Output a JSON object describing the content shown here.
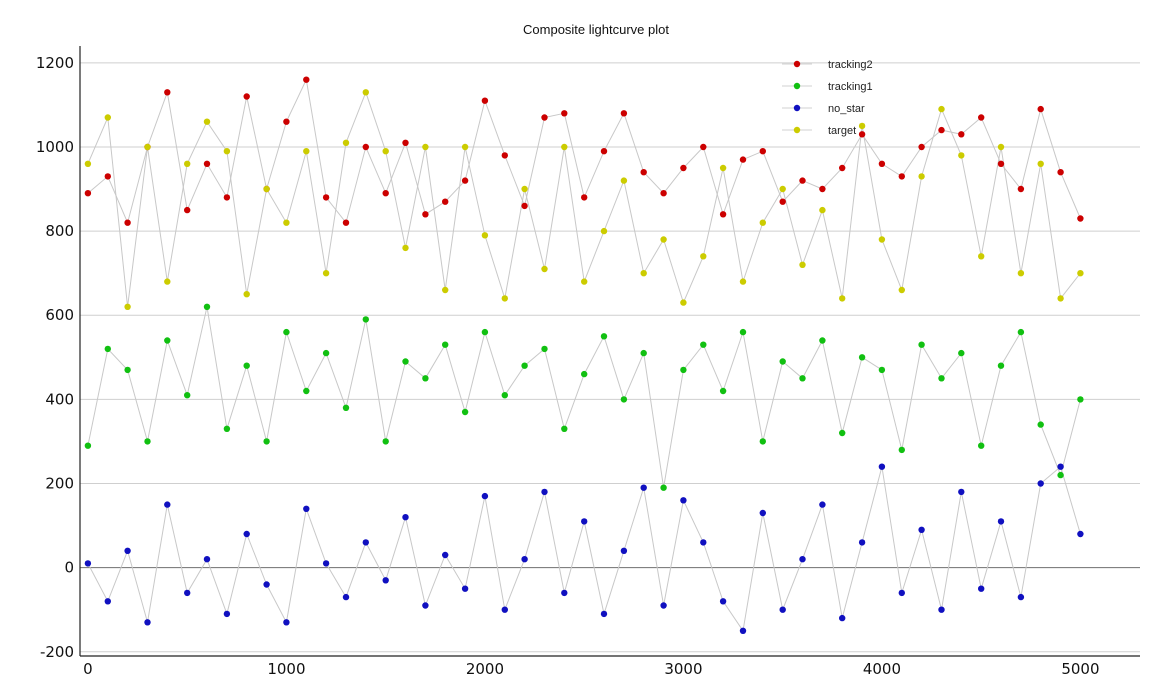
{
  "chart_data": {
    "type": "scatter",
    "title": "Composite lightcurve plot",
    "xlabel": "",
    "ylabel": "",
    "xlim": [
      -40,
      5300
    ],
    "ylim": [
      -210,
      1240
    ],
    "x_ticks": [
      0,
      1000,
      2000,
      3000,
      4000,
      5000
    ],
    "y_ticks": [
      -200,
      0,
      200,
      400,
      600,
      800,
      1000,
      1200
    ],
    "grid": true,
    "legend_position": "top-right",
    "draw_order": [
      "no_star",
      "tracking1",
      "tracking2",
      "target"
    ],
    "series": [
      {
        "name": "tracking2",
        "color": "#cc0000",
        "x": [
          0,
          100,
          200,
          300,
          400,
          500,
          600,
          700,
          800,
          900,
          1000,
          1100,
          1200,
          1300,
          1400,
          1500,
          1600,
          1700,
          1800,
          1900,
          2000,
          2100,
          2200,
          2300,
          2400,
          2500,
          2600,
          2700,
          2800,
          2900,
          3000,
          3100,
          3200,
          3300,
          3400,
          3500,
          3600,
          3700,
          3800,
          3900,
          4000,
          4100,
          4200,
          4300,
          4400,
          4500,
          4600,
          4700,
          4800,
          4900,
          5000
        ],
        "y": [
          890,
          930,
          820,
          1000,
          1130,
          850,
          960,
          880,
          1120,
          900,
          1060,
          1160,
          880,
          820,
          1000,
          890,
          1010,
          840,
          870,
          920,
          1110,
          980,
          860,
          1070,
          1080,
          880,
          990,
          1080,
          940,
          890,
          950,
          1000,
          840,
          970,
          990,
          870,
          920,
          900,
          950,
          1030,
          960,
          930,
          1000,
          1040,
          1030,
          1070,
          960,
          900,
          1090,
          940,
          830
        ]
      },
      {
        "name": "tracking1",
        "color": "#11c011",
        "x": [
          0,
          100,
          200,
          300,
          400,
          500,
          600,
          700,
          800,
          900,
          1000,
          1100,
          1200,
          1300,
          1400,
          1500,
          1600,
          1700,
          1800,
          1900,
          2000,
          2100,
          2200,
          2300,
          2400,
          2500,
          2600,
          2700,
          2800,
          2900,
          3000,
          3100,
          3200,
          3300,
          3400,
          3500,
          3600,
          3700,
          3800,
          3900,
          4000,
          4100,
          4200,
          4300,
          4400,
          4500,
          4600,
          4700,
          4800,
          4900,
          5000
        ],
        "y": [
          290,
          520,
          470,
          300,
          540,
          410,
          620,
          330,
          480,
          300,
          560,
          420,
          510,
          380,
          590,
          300,
          490,
          450,
          530,
          370,
          560,
          410,
          480,
          520,
          330,
          460,
          550,
          400,
          510,
          190,
          470,
          530,
          420,
          560,
          300,
          490,
          450,
          540,
          320,
          500,
          470,
          280,
          530,
          450,
          510,
          290,
          480,
          560,
          340,
          220,
          400
        ]
      },
      {
        "name": "no_star",
        "color": "#1010c0",
        "x": [
          0,
          100,
          200,
          300,
          400,
          500,
          600,
          700,
          800,
          900,
          1000,
          1100,
          1200,
          1300,
          1400,
          1500,
          1600,
          1700,
          1800,
          1900,
          2000,
          2100,
          2200,
          2300,
          2400,
          2500,
          2600,
          2700,
          2800,
          2900,
          3000,
          3100,
          3200,
          3300,
          3400,
          3500,
          3600,
          3700,
          3800,
          3900,
          4000,
          4100,
          4200,
          4300,
          4400,
          4500,
          4600,
          4700,
          4800,
          4900,
          5000
        ],
        "y": [
          10,
          -80,
          40,
          -130,
          150,
          -60,
          20,
          -110,
          80,
          -40,
          -130,
          140,
          10,
          -70,
          60,
          -30,
          120,
          -90,
          30,
          -50,
          170,
          -100,
          20,
          180,
          -60,
          110,
          -110,
          40,
          190,
          -90,
          160,
          60,
          -80,
          -150,
          130,
          -100,
          20,
          150,
          -120,
          60,
          240,
          -60,
          90,
          -100,
          180,
          -50,
          110,
          -70,
          200,
          240,
          80
        ]
      },
      {
        "name": "target",
        "color": "#cccc00",
        "x": [
          0,
          100,
          200,
          300,
          400,
          500,
          600,
          700,
          800,
          900,
          1000,
          1100,
          1200,
          1300,
          1400,
          1500,
          1600,
          1700,
          1800,
          1900,
          2000,
          2100,
          2200,
          2300,
          2400,
          2500,
          2600,
          2700,
          2800,
          2900,
          3000,
          3100,
          3200,
          3300,
          3400,
          3500,
          3600,
          3700,
          3800,
          3900,
          4000,
          4100,
          4200,
          4300,
          4400,
          4500,
          4600,
          4700,
          4800,
          4900,
          5000
        ],
        "y": [
          960,
          1070,
          620,
          1000,
          680,
          960,
          1060,
          990,
          650,
          900,
          820,
          990,
          700,
          1010,
          1130,
          990,
          760,
          1000,
          660,
          1000,
          790,
          640,
          900,
          710,
          1000,
          680,
          800,
          920,
          700,
          780,
          630,
          740,
          950,
          680,
          820,
          900,
          720,
          850,
          640,
          1050,
          780,
          660,
          930,
          1090,
          980,
          740,
          1000,
          700,
          960,
          640,
          700
        ]
      }
    ]
  }
}
